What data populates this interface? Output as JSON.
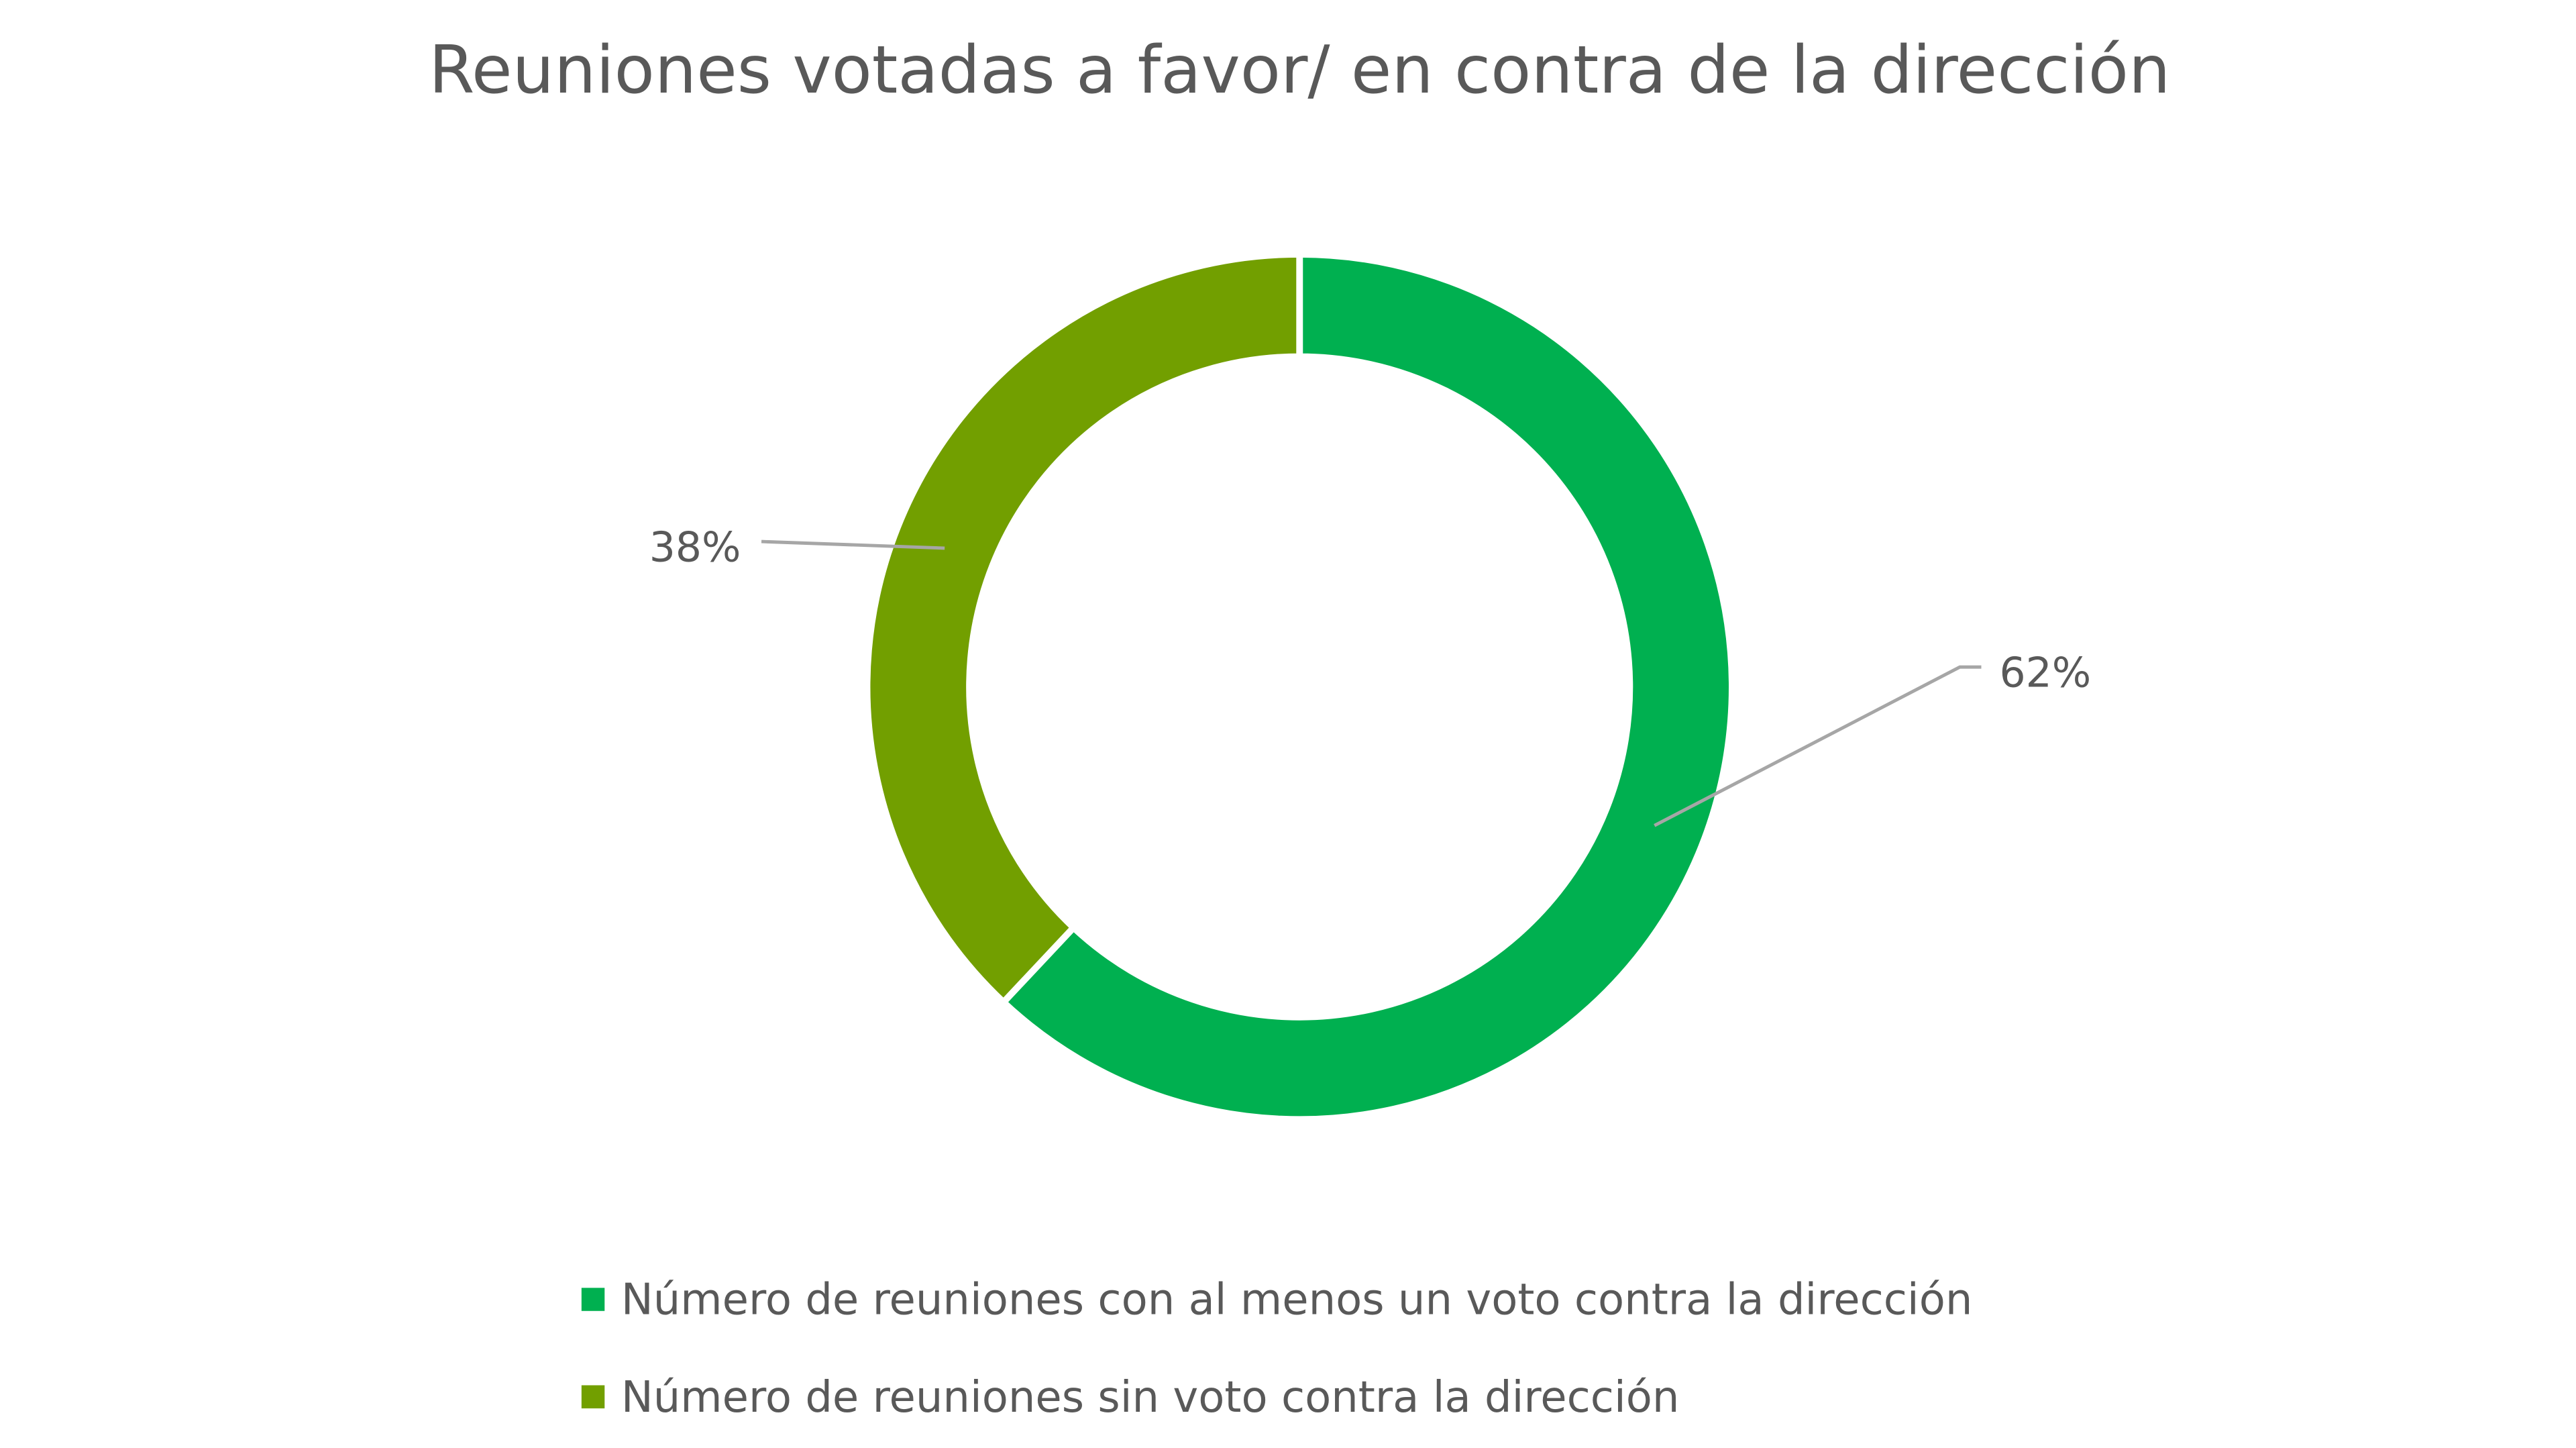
{
  "chart_data": {
    "type": "pie",
    "variant": "donut",
    "title": "Reuniones votadas a favor/ en contra de la dirección",
    "slices": [
      {
        "label": "Número de reuniones con al menos un voto contra la dirección",
        "value": 62,
        "display": "62%",
        "color": "#00B050"
      },
      {
        "label": "Número de reuniones sin voto contra la dirección",
        "value": 38,
        "display": "38%",
        "color": "#729F00"
      }
    ],
    "legend_position": "bottom"
  }
}
